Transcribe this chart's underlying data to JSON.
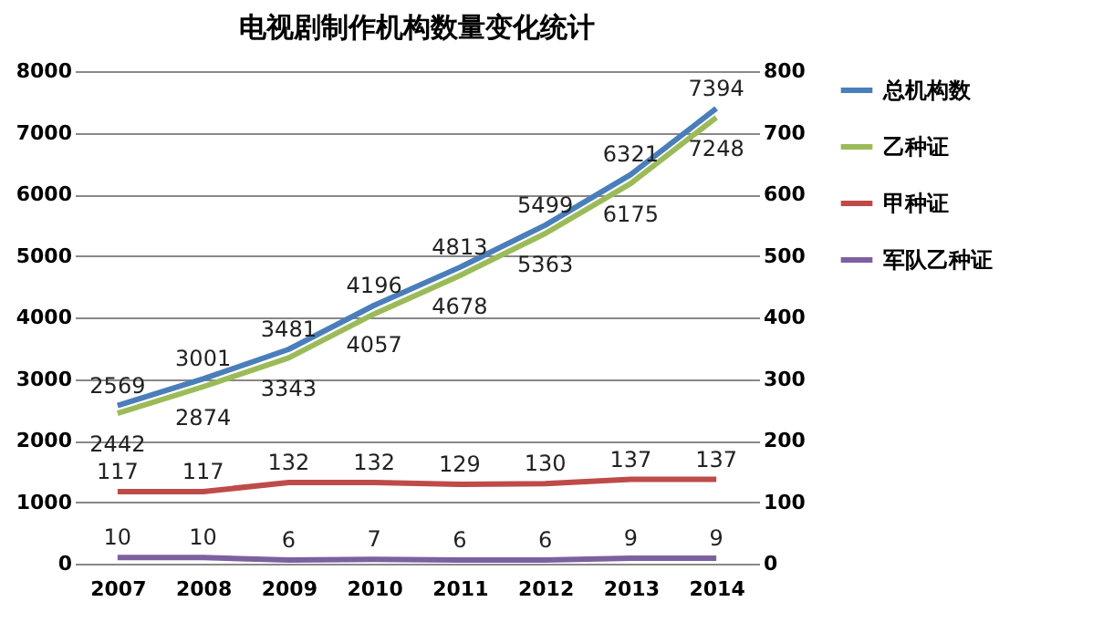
{
  "chart_data": {
    "type": "line",
    "title": "电视剧制作机构数量变化统计",
    "categories": [
      "2007",
      "2008",
      "2009",
      "2010",
      "2011",
      "2012",
      "2013",
      "2014"
    ],
    "series": [
      {
        "name": "总机构数",
        "color": "#4a7ebb",
        "values": [
          2569,
          3001,
          3481,
          4196,
          4813,
          5499,
          6321,
          7394
        ]
      },
      {
        "name": "乙种证",
        "color": "#9bbb59",
        "values": [
          2442,
          2874,
          3343,
          4057,
          4678,
          5363,
          6175,
          7248
        ]
      },
      {
        "name": "甲种证",
        "color": "#be4b48",
        "axis": "y2",
        "values": [
          117,
          117,
          132,
          132,
          129,
          130,
          137,
          137
        ]
      },
      {
        "name": "军队乙种证",
        "color": "#7d60a0",
        "axis": "y2",
        "values": [
          10,
          10,
          6,
          7,
          6,
          6,
          9,
          9
        ]
      }
    ],
    "ylim": [
      0,
      8000
    ],
    "yticks": [
      0,
      1000,
      2000,
      3000,
      4000,
      5000,
      6000,
      7000,
      8000
    ],
    "y2lim": [
      0,
      800
    ],
    "y2ticks": [
      0,
      100,
      200,
      300,
      400,
      500,
      600,
      700,
      800
    ],
    "grid": "y",
    "legend": "right",
    "data_labels": true,
    "marker": "none",
    "line_style": "solid"
  }
}
